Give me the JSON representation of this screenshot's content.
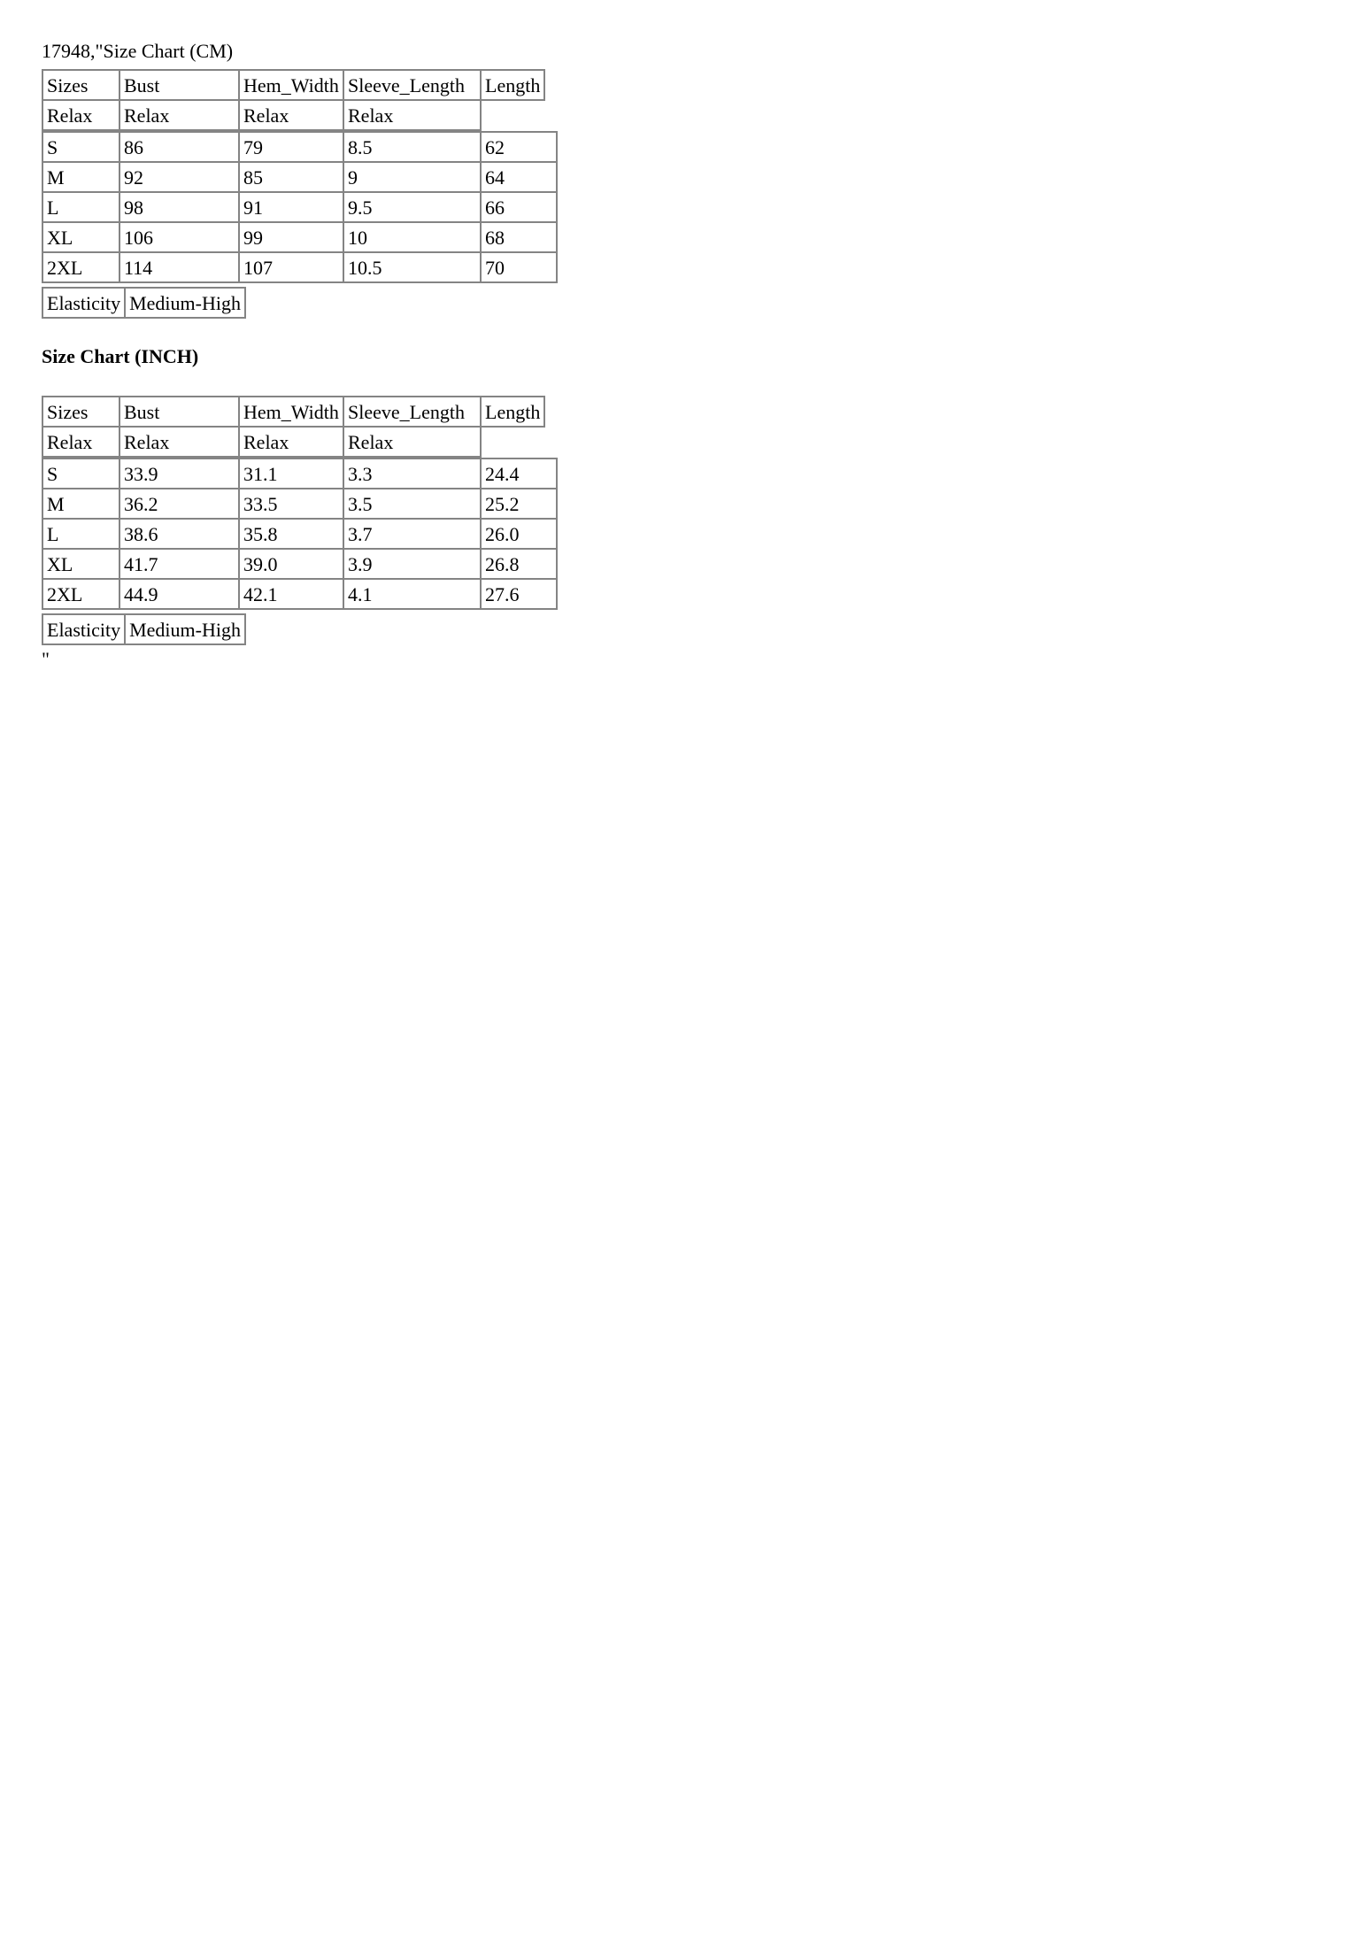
{
  "document": {
    "title_line": "17948,\"Size Chart (CM)",
    "inch_heading": "Size Chart (INCH)",
    "closing_quote": "\"",
    "border_color": "#848484",
    "text_color": "#000000",
    "background_color": "#ffffff"
  },
  "tables": {
    "cm": {
      "headers": [
        "Sizes",
        "Bust",
        "Hem_Width",
        "Sleeve_Length",
        "Length"
      ],
      "relax": [
        "Relax",
        "Relax",
        "Relax",
        "Relax"
      ],
      "rows": [
        [
          "S",
          "86",
          "79",
          "8.5",
          "62"
        ],
        [
          "M",
          "92",
          "85",
          "9",
          "64"
        ],
        [
          "L",
          "98",
          "91",
          "9.5",
          "66"
        ],
        [
          "XL",
          "106",
          "99",
          "10",
          "68"
        ],
        [
          "2XL",
          "114",
          "107",
          "10.5",
          "70"
        ]
      ],
      "elasticity_label": "Elasticity",
      "elasticity_value": "Medium-High"
    },
    "inch": {
      "headers": [
        "Sizes",
        "Bust",
        "Hem_Width",
        "Sleeve_Length",
        "Length"
      ],
      "relax": [
        "Relax",
        "Relax",
        "Relax",
        "Relax"
      ],
      "rows": [
        [
          "S",
          "33.9",
          "31.1",
          "3.3",
          "24.4"
        ],
        [
          "M",
          "36.2",
          "33.5",
          "3.5",
          "25.2"
        ],
        [
          "L",
          "38.6",
          "35.8",
          "3.7",
          "26.0"
        ],
        [
          "XL",
          "41.7",
          "39.0",
          "3.9",
          "26.8"
        ],
        [
          "2XL",
          "44.9",
          "42.1",
          "4.1",
          "27.6"
        ]
      ],
      "elasticity_label": "Elasticity",
      "elasticity_value": "Medium-High"
    }
  }
}
